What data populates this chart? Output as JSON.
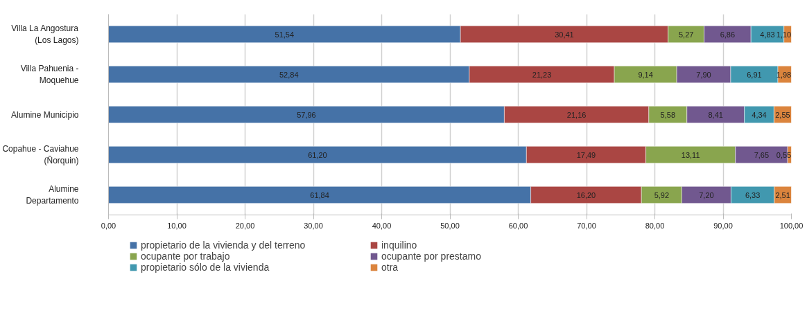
{
  "chart_data": {
    "type": "bar",
    "orientation": "horizontal",
    "stacked": true,
    "categories": [
      "Villa La Angostura (Los Lagos)",
      "Villa Pahuenia - Moquehue",
      "Alumine Municipio",
      "Copahue - Caviahue (Ñorquin)",
      "Alumine Departamento"
    ],
    "series": [
      {
        "name": "propietario de la vivienda y del terreno",
        "color": "#4572a7",
        "values": [
          51.54,
          52.84,
          57.96,
          61.2,
          61.84
        ],
        "value_labels": [
          "51,54",
          "52,84",
          "57,96",
          "61,20",
          "61,84"
        ]
      },
      {
        "name": "inquilino",
        "color": "#aa4643",
        "values": [
          30.41,
          21.23,
          21.16,
          17.49,
          16.2
        ],
        "value_labels": [
          "30,41",
          "21,23",
          "21,16",
          "17,49",
          "16,20"
        ]
      },
      {
        "name": "ocupante por trabajo",
        "color": "#89a54e",
        "values": [
          5.27,
          9.14,
          5.58,
          13.11,
          5.92
        ],
        "value_labels": [
          "5,27",
          "9,14",
          "5,58",
          "13,11",
          "5,92"
        ]
      },
      {
        "name": "ocupante por prestamo",
        "color": "#71588f",
        "values": [
          6.86,
          7.9,
          8.41,
          7.65,
          7.2
        ],
        "value_labels": [
          "6,86",
          "7,90",
          "8,41",
          "7,65",
          "7,20"
        ]
      },
      {
        "name": "propietario sólo de la vivienda",
        "color": "#4198af",
        "values": [
          4.83,
          6.91,
          4.34,
          null,
          6.33
        ],
        "value_labels": [
          "4,83",
          "6,91",
          "4,34",
          null,
          "6,33"
        ]
      },
      {
        "name": "otra",
        "color": "#db843d",
        "values": [
          1.1,
          1.98,
          2.55,
          0.55,
          2.51
        ],
        "value_labels": [
          "1,10",
          "1,98",
          "2,55",
          "0,55",
          "2,51"
        ]
      }
    ],
    "xlim": [
      0,
      100
    ],
    "xticks": [
      {
        "value": 0,
        "label": "0,00"
      },
      {
        "value": 10,
        "label": "10,00"
      },
      {
        "value": 20,
        "label": "20,00"
      },
      {
        "value": 30,
        "label": "30,00"
      },
      {
        "value": 40,
        "label": "40,00"
      },
      {
        "value": 50,
        "label": "50,00"
      },
      {
        "value": 60,
        "label": "60,00"
      },
      {
        "value": 70,
        "label": "70,00"
      },
      {
        "value": 80,
        "label": "80,00"
      },
      {
        "value": 90,
        "label": "90,00"
      },
      {
        "value": 100,
        "label": "100,00"
      }
    ],
    "grid": "x",
    "legend": "bottom"
  }
}
